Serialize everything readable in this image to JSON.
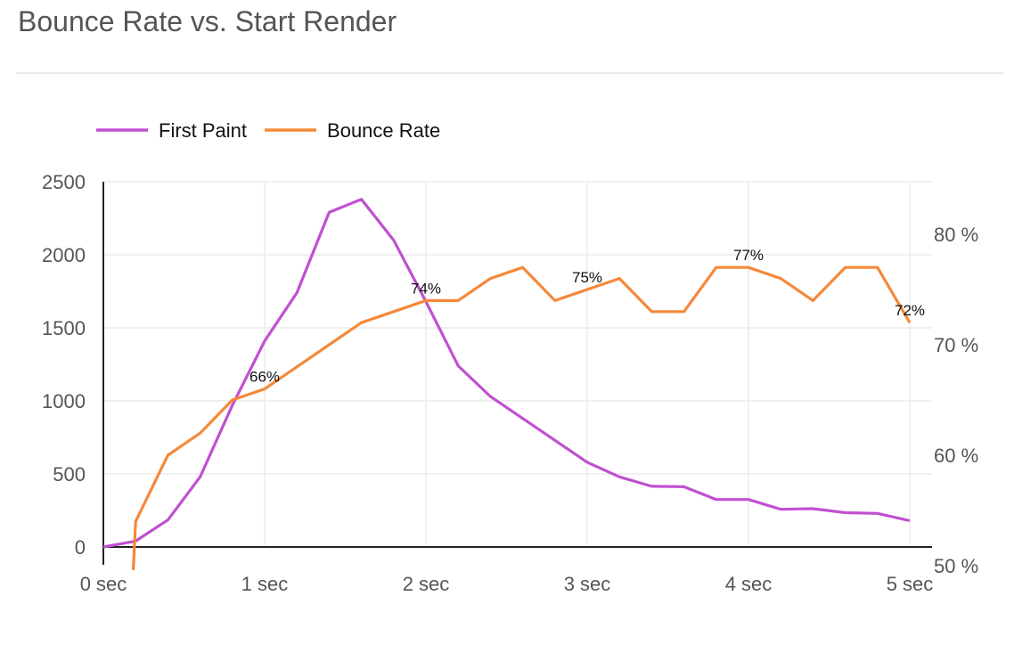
{
  "header": {
    "title": "Bounce Rate vs. Start Render"
  },
  "chart_data": {
    "type": "line",
    "title": "Bounce Rate vs. Start Render",
    "x_ticks": [
      "0 sec",
      "1 sec",
      "2 sec",
      "3 sec",
      "4 sec",
      "5 sec"
    ],
    "y_left_ticks": [
      "0",
      "500",
      "1000",
      "1500",
      "2000",
      "2500"
    ],
    "y_right_ticks": [
      "50 %",
      "60 %",
      "70 %",
      "80 %"
    ],
    "y_left_range": [
      0,
      2500
    ],
    "y_right_range": [
      50,
      80
    ],
    "x_range": [
      0,
      5
    ],
    "legend_position": "top-left",
    "grid": true,
    "series": [
      {
        "name": "First Paint",
        "axis": "left",
        "color": "#c050d0",
        "x": [
          0,
          0.2,
          0.4,
          0.6,
          0.8,
          1.0,
          1.2,
          1.4,
          1.6,
          1.8,
          2.0,
          2.2,
          2.4,
          2.6,
          2.8,
          3.0,
          3.2,
          3.4,
          3.6,
          3.8,
          4.0,
          4.2,
          4.4,
          4.6,
          4.8,
          5.0
        ],
        "values": [
          0,
          40,
          185,
          480,
          970,
          1410,
          1740,
          2290,
          2380,
          2100,
          1680,
          1240,
          1030,
          880,
          730,
          580,
          480,
          415,
          412,
          325,
          325,
          258,
          262,
          235,
          230,
          180
        ]
      },
      {
        "name": "Bounce Rate",
        "axis": "right",
        "color": "#f5883a",
        "x": [
          0.18,
          0.2,
          0.4,
          0.6,
          0.8,
          1.0,
          1.2,
          1.4,
          1.6,
          1.8,
          2.0,
          2.2,
          2.4,
          2.6,
          2.8,
          3.0,
          3.2,
          3.4,
          3.6,
          3.8,
          4.0,
          4.2,
          4.4,
          4.6,
          4.8,
          5.0
        ],
        "values": [
          48,
          54,
          60,
          62,
          65,
          66,
          68,
          70,
          72,
          73,
          74,
          74,
          76,
          77,
          74,
          75,
          76,
          73,
          73,
          77,
          77,
          76,
          74,
          77,
          77,
          72
        ]
      }
    ],
    "annotations": [
      {
        "x": 1.0,
        "y": 66,
        "text": "66%"
      },
      {
        "x": 2.0,
        "y": 74,
        "text": "74%"
      },
      {
        "x": 3.0,
        "y": 75,
        "text": "75%"
      },
      {
        "x": 4.0,
        "y": 77,
        "text": "77%"
      },
      {
        "x": 5.0,
        "y": 72,
        "text": "72%"
      }
    ]
  }
}
